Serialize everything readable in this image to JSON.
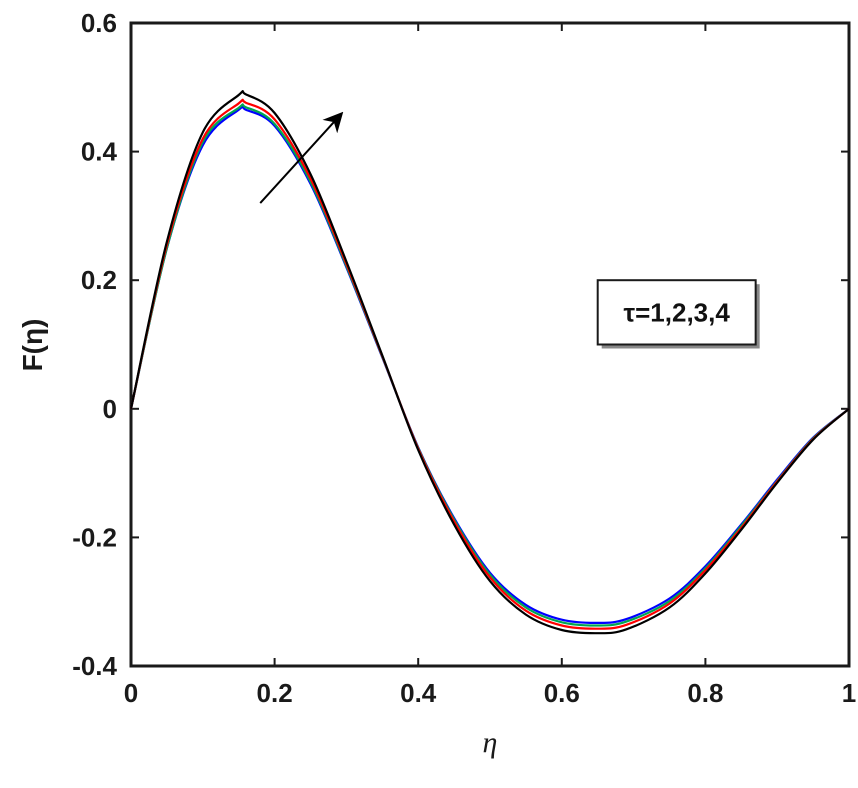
{
  "chart_data": {
    "type": "line",
    "title": "",
    "xlabel": "η",
    "ylabel": "F(η)",
    "xlim": [
      0,
      1
    ],
    "ylim": [
      -0.4,
      0.6
    ],
    "xticks": [
      0,
      0.2,
      0.4,
      0.6,
      0.8,
      1
    ],
    "yticks": [
      -0.4,
      -0.2,
      0,
      0.2,
      0.4,
      0.6
    ],
    "xtick_labels": [
      "0",
      "0.2",
      "0.4",
      "0.6",
      "0.8",
      "1"
    ],
    "ytick_labels": [
      "-0.4",
      "-0.2",
      "0",
      "0.2",
      "0.4",
      "0.6"
    ],
    "grid": false,
    "x": [
      0,
      0.05,
      0.1,
      0.15,
      0.16,
      0.2,
      0.25,
      0.3,
      0.35,
      0.4,
      0.45,
      0.5,
      0.55,
      0.6,
      0.65,
      0.69,
      0.75,
      0.8,
      0.85,
      0.9,
      0.95,
      1.0
    ],
    "series": [
      {
        "color": "#0000ff",
        "values": [
          0,
          0.25,
          0.41,
          0.465,
          0.465,
          0.44,
          0.35,
          0.22,
          0.08,
          -0.06,
          -0.17,
          -0.255,
          -0.305,
          -0.328,
          -0.333,
          -0.327,
          -0.295,
          -0.245,
          -0.18,
          -0.11,
          -0.045,
          0
        ]
      },
      {
        "color": "#00a651",
        "values": [
          0,
          0.25,
          0.415,
          0.468,
          0.469,
          0.443,
          0.353,
          0.222,
          0.081,
          -0.061,
          -0.172,
          -0.258,
          -0.309,
          -0.332,
          -0.337,
          -0.331,
          -0.299,
          -0.248,
          -0.182,
          -0.112,
          -0.046,
          0
        ]
      },
      {
        "color": "#ff0000",
        "values": [
          0,
          0.255,
          0.42,
          0.475,
          0.476,
          0.45,
          0.358,
          0.225,
          0.082,
          -0.062,
          -0.175,
          -0.262,
          -0.314,
          -0.337,
          -0.342,
          -0.336,
          -0.303,
          -0.251,
          -0.185,
          -0.113,
          -0.047,
          0
        ]
      },
      {
        "color": "#000000",
        "values": [
          0,
          0.26,
          0.43,
          0.488,
          0.489,
          0.46,
          0.365,
          0.229,
          0.083,
          -0.064,
          -0.18,
          -0.268,
          -0.32,
          -0.344,
          -0.349,
          -0.343,
          -0.309,
          -0.256,
          -0.188,
          -0.115,
          -0.048,
          0
        ]
      }
    ],
    "annotation": {
      "legend_text": "τ=1,2,3,4",
      "arrow_from": [
        0.18,
        0.32
      ],
      "arrow_to": [
        0.29,
        0.455
      ],
      "legend_box_x": [
        0.65,
        0.87
      ],
      "legend_box_y": [
        0.1,
        0.2
      ]
    }
  }
}
